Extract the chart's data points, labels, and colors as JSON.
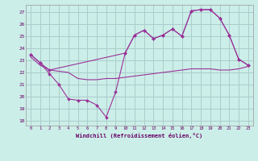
{
  "bg_color": "#cceee8",
  "grid_color": "#aacccc",
  "line_color": "#993399",
  "marker_color": "#993399",
  "xlabel": "Windchill (Refroidissement éolien,°C)",
  "ylabel_ticks": [
    18,
    19,
    20,
    21,
    22,
    23,
    24,
    25,
    26,
    27
  ],
  "xlim": [
    -0.5,
    23.5
  ],
  "ylim": [
    17.6,
    27.6
  ],
  "series1_x": [
    0,
    1,
    2,
    3,
    4,
    5,
    6,
    7,
    8,
    9,
    10,
    11,
    12,
    13,
    14,
    15,
    16,
    17,
    18,
    19,
    20,
    21,
    22,
    23
  ],
  "series1_y": [
    23.5,
    22.8,
    21.9,
    21.0,
    19.8,
    19.7,
    19.7,
    19.3,
    18.3,
    20.4,
    23.6,
    25.1,
    25.5,
    24.8,
    25.1,
    25.6,
    25.0,
    27.1,
    27.2,
    27.2,
    26.5,
    25.1,
    23.1,
    22.6
  ],
  "series2_x": [
    0,
    1,
    2,
    3,
    4,
    5,
    6,
    7,
    8,
    9,
    10,
    11,
    12,
    13,
    14,
    15,
    16,
    17,
    18,
    19,
    20,
    21,
    22,
    23
  ],
  "series2_y": [
    23.3,
    22.6,
    22.2,
    22.1,
    22.0,
    21.5,
    21.4,
    21.4,
    21.5,
    21.5,
    21.6,
    21.7,
    21.8,
    21.9,
    22.0,
    22.1,
    22.2,
    22.3,
    22.3,
    22.3,
    22.2,
    22.2,
    22.3,
    22.5
  ],
  "series3_x": [
    0,
    1,
    2,
    10,
    11,
    12,
    13,
    14,
    15,
    16,
    17,
    18,
    19,
    20,
    21,
    22,
    23
  ],
  "series3_y": [
    23.5,
    22.8,
    22.2,
    23.6,
    25.1,
    25.5,
    24.8,
    25.1,
    25.6,
    25.0,
    27.1,
    27.2,
    27.2,
    26.5,
    25.1,
    23.1,
    22.6
  ],
  "figsize": [
    3.2,
    2.0
  ],
  "dpi": 100
}
